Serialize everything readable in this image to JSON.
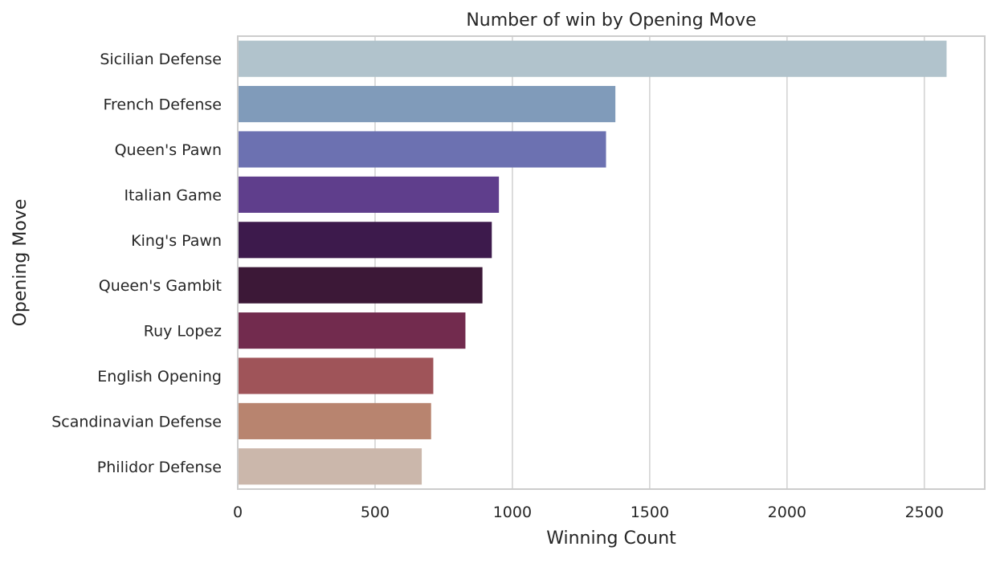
{
  "chart_data": {
    "type": "bar",
    "orientation": "horizontal",
    "title": "Number of win by Opening Move",
    "xlabel": "Winning Count",
    "ylabel": "Opening Move",
    "xlim": [
      0,
      2720
    ],
    "xticks": [
      0,
      500,
      1000,
      1500,
      2000,
      2500
    ],
    "grid": "vertical",
    "legend": "none",
    "categories": [
      "Sicilian Defense",
      "French Defense",
      "Queen's Pawn",
      "Italian Game",
      "King's Pawn",
      "Queen's Gambit",
      "Ruy Lopez",
      "English Opening",
      "Scandinavian Defense",
      "Philidor Defense"
    ],
    "values": [
      2581,
      1375,
      1341,
      951,
      925,
      891,
      829,
      712,
      704,
      670
    ],
    "colors": [
      "#b1c3cc",
      "#809bba",
      "#6c71b1",
      "#5f3e8c",
      "#3d1a4c",
      "#3c1837",
      "#722b4e",
      "#9f5459",
      "#b8846f",
      "#cbb7ab"
    ]
  }
}
